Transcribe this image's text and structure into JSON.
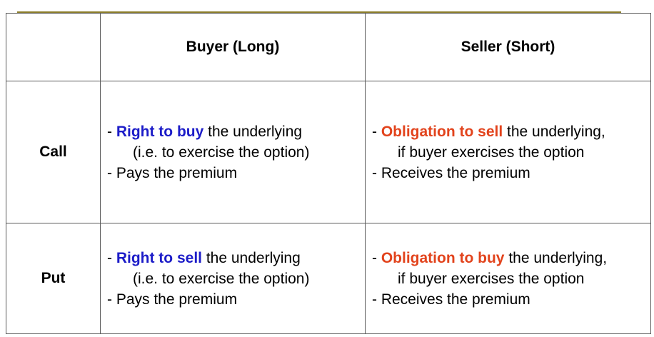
{
  "header": {
    "corner": "",
    "buyer": "Buyer (Long)",
    "seller": "Seller (Short)"
  },
  "colors": {
    "buyer_highlight": "#1c1cc8",
    "seller_highlight": "#e2431c",
    "top_rule": "#8b7d2a"
  },
  "rows": [
    {
      "label": "Call",
      "buyer": {
        "dash1": "- ",
        "highlight": "Right to buy",
        "rest1": " the underlying",
        "line2": "(i.e. to exercise the option)",
        "line3": "- Pays the premium"
      },
      "seller": {
        "dash1": "- ",
        "highlight": "Obligation to sell",
        "rest1": " the underlying,",
        "line2": "if buyer exercises the option",
        "line3": "- Receives the premium"
      }
    },
    {
      "label": "Put",
      "buyer": {
        "dash1": "- ",
        "highlight": "Right to sell",
        "rest1": " the underlying",
        "line2": "(i.e. to exercise the option)",
        "line3": "- Pays the premium"
      },
      "seller": {
        "dash1": "- ",
        "highlight": "Obligation to buy",
        "rest1": " the underlying,",
        "line2": "if buyer exercises the option",
        "line3": "- Receives the premium"
      }
    }
  ]
}
